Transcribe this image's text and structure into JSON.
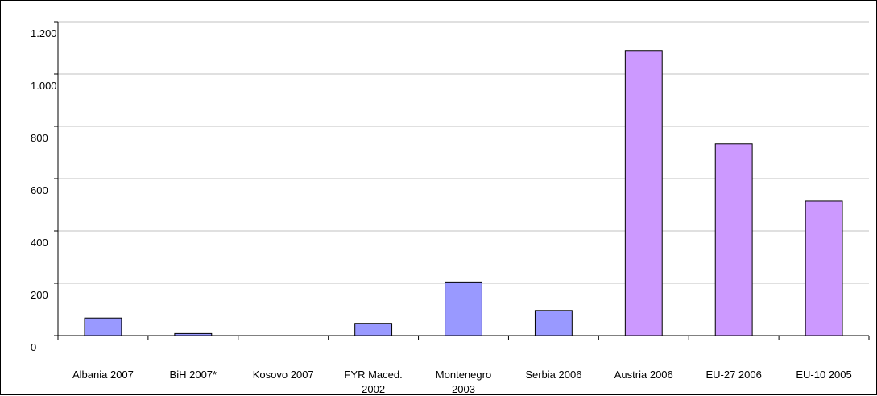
{
  "chart_data": {
    "type": "bar",
    "title": "",
    "xlabel": "",
    "ylabel": "",
    "categories": [
      [
        "Albania 2007"
      ],
      [
        "BiH 2007*"
      ],
      [
        "Kosovo 2007"
      ],
      [
        "FYR Maced.",
        "2002"
      ],
      [
        "Montenegro",
        "2003"
      ],
      [
        "Serbia 2006"
      ],
      [
        "Austria 2006"
      ],
      [
        "EU-27 2006"
      ],
      [
        "EU-10 2005"
      ]
    ],
    "values": [
      67,
      8,
      0,
      47,
      205,
      96,
      1090,
      733,
      514
    ],
    "bar_colors": [
      "#9999ff",
      "#9999ff",
      "#9999ff",
      "#9999ff",
      "#9999ff",
      "#9999ff",
      "#cc99ff",
      "#cc99ff",
      "#cc99ff"
    ],
    "ylim": [
      0,
      1200
    ],
    "yticks": [
      0,
      200,
      400,
      600,
      800,
      1000,
      1200
    ],
    "ytick_labels": [
      "0",
      "200",
      "400",
      "600",
      "800",
      "1.000",
      "1.200"
    ],
    "grid": true,
    "gridline_color": "#c0c0c0",
    "bar_edge_color": "#000000",
    "legend": "none"
  }
}
